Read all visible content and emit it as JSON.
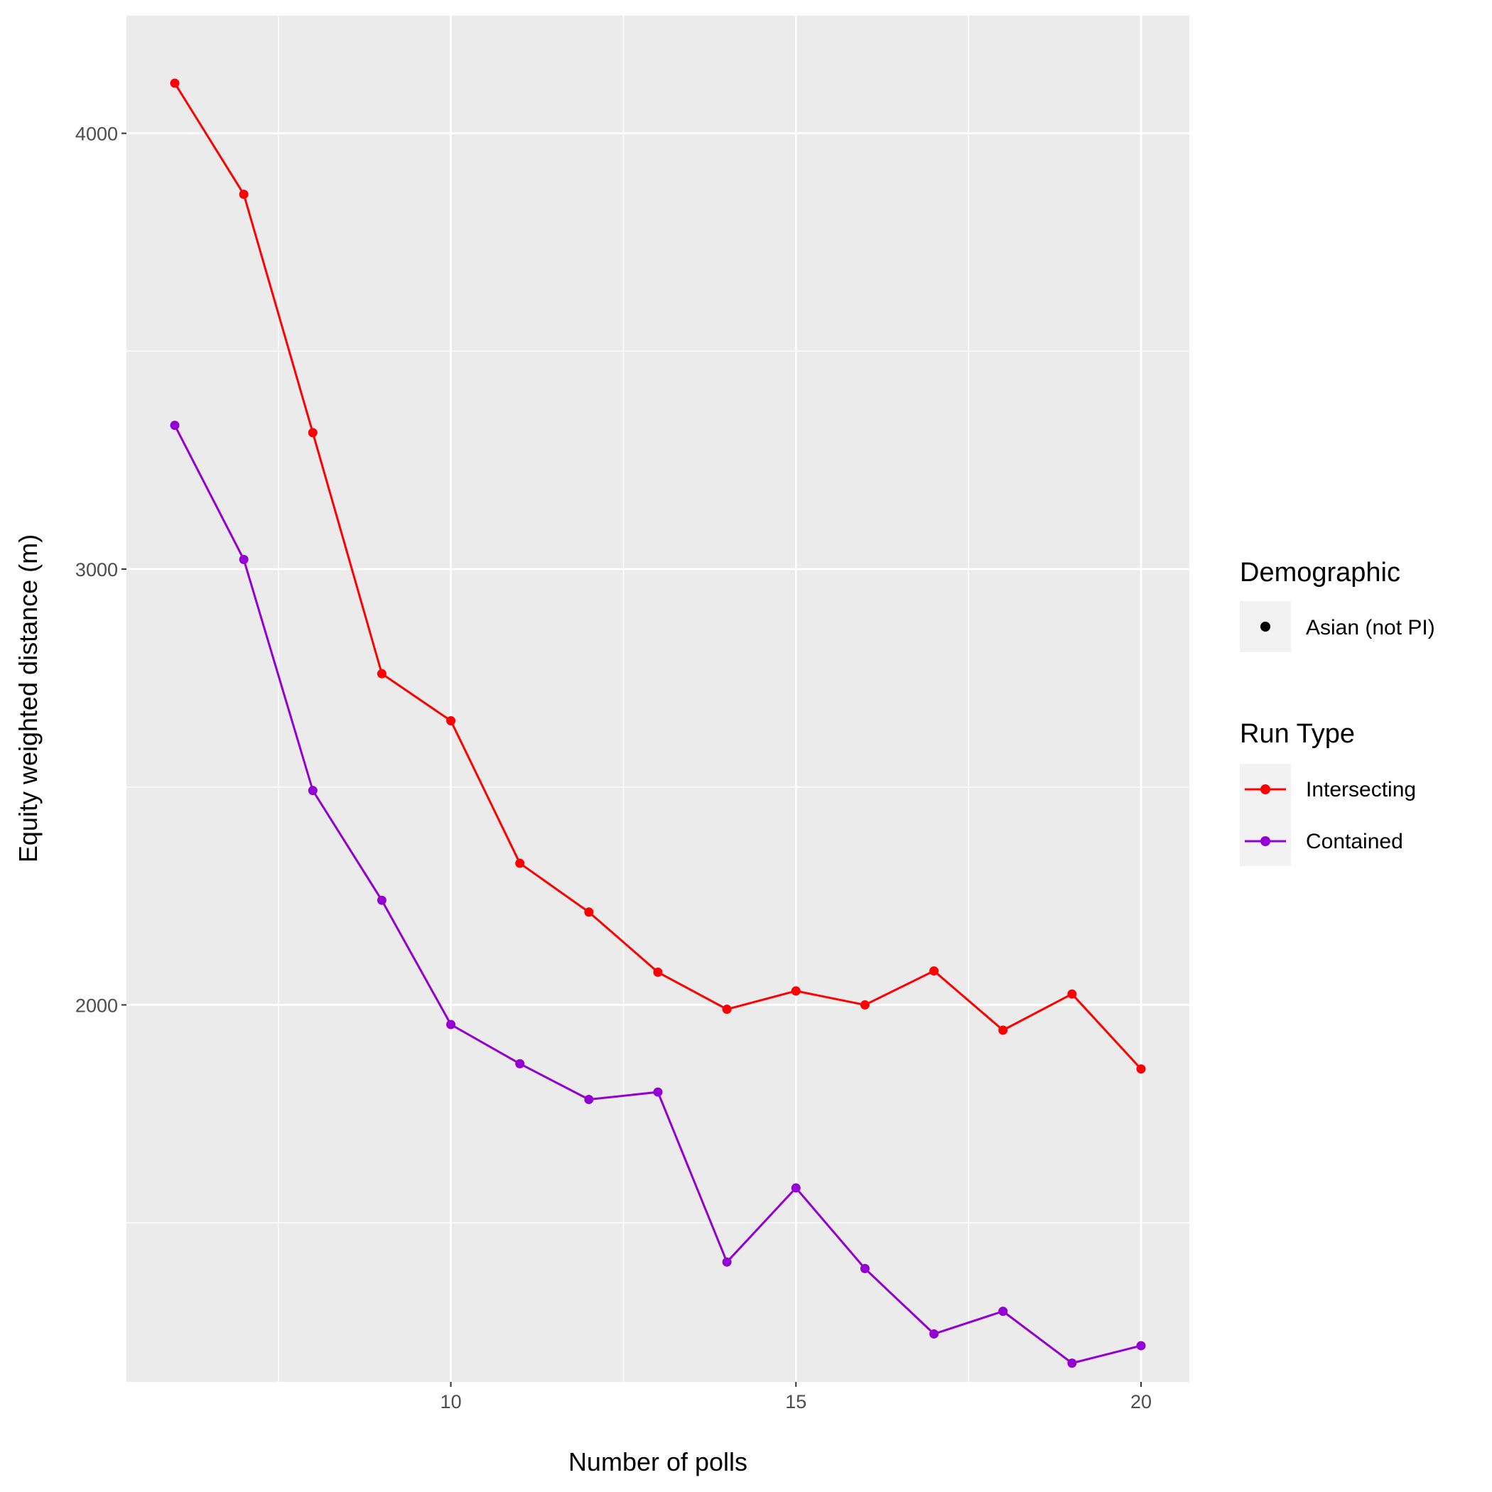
{
  "chart_data": {
    "type": "line",
    "xlabel": "Number of polls",
    "ylabel": "Equity weighted distance (m)",
    "xlim": [
      5.3,
      20.7
    ],
    "ylim": [
      1135,
      4270
    ],
    "x_ticks": [
      10,
      15,
      20
    ],
    "x_minor_ticks": [
      7.5,
      12.5,
      17.5
    ],
    "y_ticks": [
      2000,
      3000,
      4000
    ],
    "y_minor_ticks": [
      1500,
      2500,
      3500
    ],
    "grid": true,
    "panel_background": "#ebebeb",
    "legend_position": "right",
    "x": [
      6,
      7,
      8,
      9,
      10,
      11,
      12,
      13,
      14,
      15,
      16,
      17,
      18,
      19,
      20
    ],
    "series": [
      {
        "name": "Intersecting",
        "color": "#ff0000",
        "values": [
          4115,
          3860,
          3313,
          2760,
          2652,
          2325,
          2213,
          2075,
          1990,
          2032,
          2000,
          2078,
          1942,
          2025,
          1853
        ]
      },
      {
        "name": "Contained",
        "color": "#9400d3",
        "values": [
          3330,
          3022,
          2492,
          2240,
          1955,
          1865,
          1783,
          1800,
          1410,
          1580,
          1395,
          1245,
          1297,
          1178,
          1218
        ]
      }
    ],
    "legend": {
      "demographic": {
        "title": "Demographic",
        "entries": [
          "Asian (not PI)"
        ]
      },
      "run_type": {
        "title": "Run Type",
        "entries": [
          "Intersecting",
          "Contained"
        ]
      }
    }
  }
}
